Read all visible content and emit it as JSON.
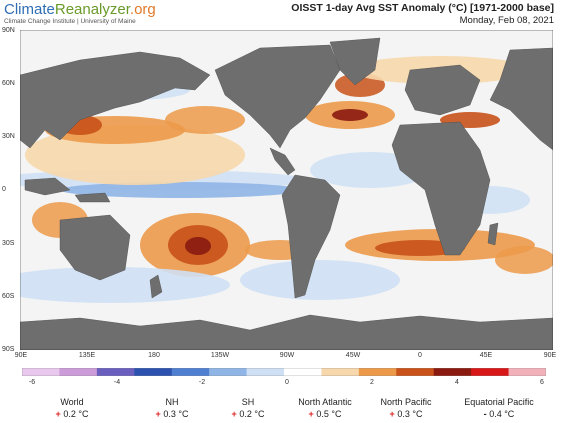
{
  "header": {
    "logo_part1": "Climate",
    "logo_part2": "Reanalyzer",
    "logo_part3": ".org",
    "subtitle": "Climate Change Institute | University of Maine",
    "title": "OISST 1-day Avg SST Anomaly (°C) [1971-2000 base]",
    "date": "Monday, Feb 08, 2021"
  },
  "map": {
    "lat_labels": [
      "90N",
      "60N",
      "30N",
      "0",
      "30S",
      "60S",
      "90S"
    ],
    "lon_labels": [
      "90E",
      "135E",
      "180",
      "135W",
      "90W",
      "45W",
      "0",
      "45E",
      "90E"
    ],
    "colors": {
      "land": "#6e6e6e",
      "ocean_neutral": "#f3f3f3",
      "ice": "#ffffff"
    }
  },
  "colorbar": {
    "labels": [
      "-6",
      "-4",
      "-2",
      "0",
      "2",
      "4",
      "6"
    ],
    "range": [
      -6,
      6
    ],
    "colors": [
      "#e9c8ee",
      "#cc9bd9",
      "#6a5fbf",
      "#2c52b0",
      "#4f7fd0",
      "#8fb5e6",
      "#cfe0f4",
      "#ffffff",
      "#f7d8ac",
      "#ec9a4a",
      "#c8521a",
      "#8a1a0f",
      "#d81818",
      "#f2b0b8"
    ]
  },
  "stats": [
    {
      "name": "World",
      "sign": "+",
      "value": "0.2 °C"
    },
    {
      "name": "NH",
      "sign": "+",
      "value": "0.3 °C"
    },
    {
      "name": "SH",
      "sign": "+",
      "value": "0.2 °C"
    },
    {
      "name": "North Atlantic",
      "sign": "+",
      "value": "0.5 °C"
    },
    {
      "name": "North Pacific",
      "sign": "+",
      "value": "0.3 °C"
    },
    {
      "name": "Equatorial Pacific",
      "sign": "-",
      "value": "0.4 °C"
    }
  ]
}
